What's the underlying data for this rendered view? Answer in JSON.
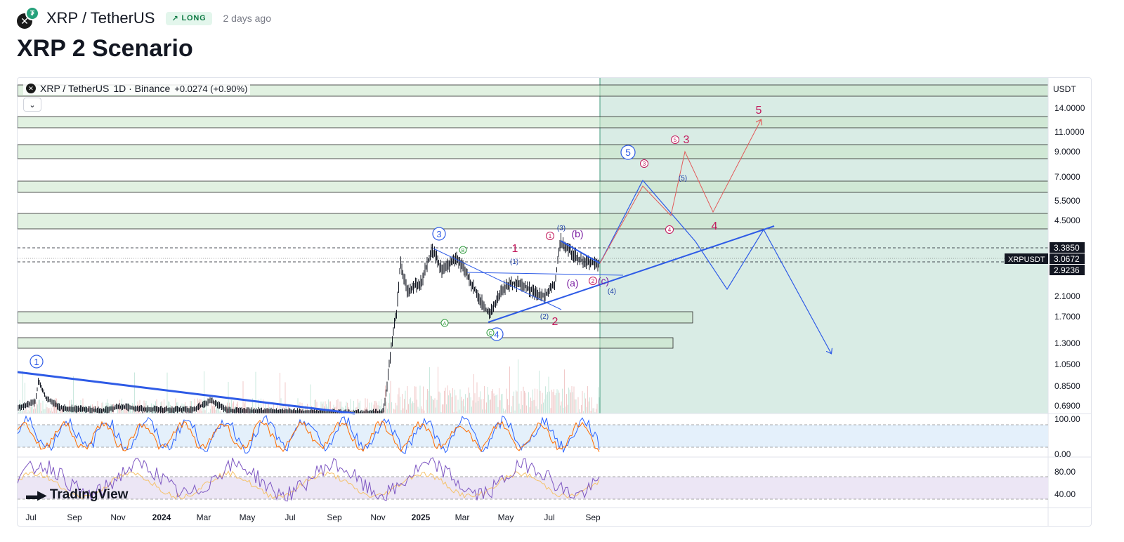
{
  "header": {
    "pair": "XRP / TetherUS",
    "badge": "LONG",
    "badge_icon": "arrow-up-right-icon",
    "time_ago": "2 days ago",
    "title": "XRP 2 Scenario"
  },
  "chart": {
    "legend_pair": "XRP / TetherUS",
    "legend_interval": "1D · Binance",
    "legend_change": "+0.0274 (+0.90%)",
    "currency": "USDT",
    "price_axis": [
      "14.0000",
      "11.0000",
      "9.0000",
      "7.0000",
      "5.5000",
      "4.5000",
      "2.1000",
      "1.7000",
      "1.3000",
      "1.0500",
      "0.8500",
      "0.6900"
    ],
    "price_tags": {
      "top": "3.3850",
      "symbol": "XRPUSDT",
      "current": "3.0672",
      "bottom": "2.9236"
    },
    "stoch_axis": [
      "100.00",
      "0.00"
    ],
    "rsi_axis": [
      "80.00",
      "40.00"
    ],
    "time_axis": [
      "Jul",
      "Sep",
      "Nov",
      "2024",
      "Mar",
      "May",
      "Jul",
      "Sep",
      "Nov",
      "2025",
      "Mar",
      "May",
      "Jul",
      "Sep"
    ],
    "branding": "TradingView",
    "wave_labels": {
      "circle_1": "1",
      "circle_3": "3",
      "circle_4": "4",
      "circle_5": "5",
      "A": "A",
      "B": "B",
      "C": "C",
      "red_1": "1",
      "red_2": "2",
      "red_3": "3",
      "red_4": "4",
      "red_5": "5",
      "small_r1": "1",
      "small_r2": "2",
      "small_r3": "3",
      "small_r4": "4",
      "small_r5": "5",
      "paren_1": "(1)",
      "paren_2": "(2)",
      "paren_3": "(3)",
      "paren_4": "(4)",
      "paren_5": "(5)",
      "a": "(a)",
      "b": "(b)",
      "c": "(c)"
    },
    "colors": {
      "candle": "#131722",
      "zone_fill": "#c8e6c9",
      "projection_bg": "#d9ece5",
      "trendline": "#2e5be6",
      "red_path": "#e25a5a",
      "stoch_bg": "#e4f0fb",
      "rsi_bg": "#ece6f5",
      "rsi_line": "#7e57c2",
      "sma_line": "#f5c26b"
    }
  }
}
